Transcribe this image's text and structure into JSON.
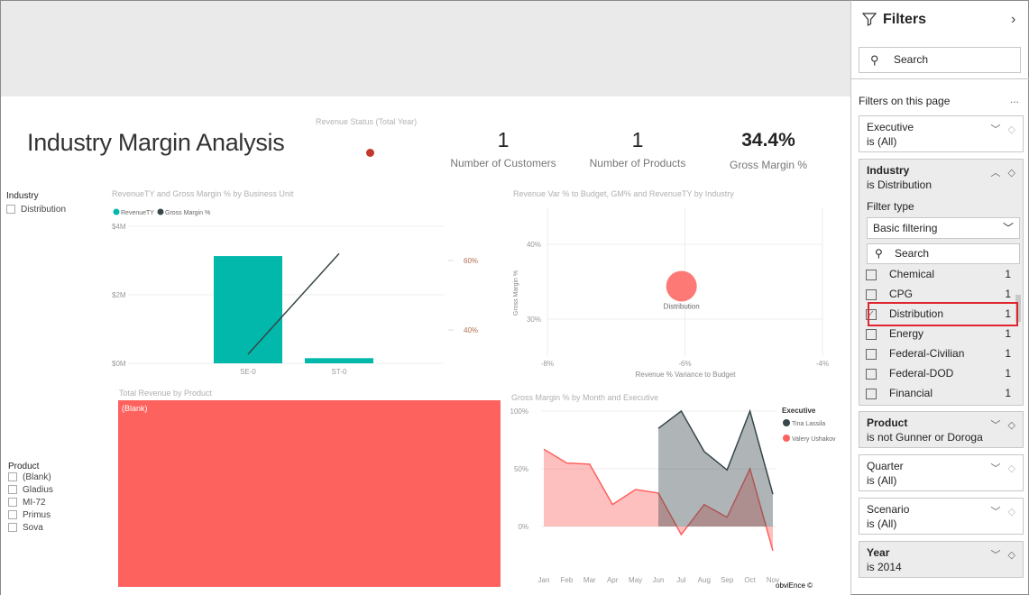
{
  "report": {
    "title": "Industry Margin Analysis",
    "revenue_status_label": "Revenue Status (Total Year)",
    "status_color": "#c0392b",
    "kpis": [
      {
        "value": "1",
        "label": "Number of Customers"
      },
      {
        "value": "1",
        "label": "Number of Products"
      },
      {
        "value": "34.4%",
        "label": "Gross Margin %"
      }
    ],
    "industry_slicer": {
      "title": "Industry",
      "items": [
        "Distribution"
      ]
    },
    "product_slicer": {
      "title": "Product",
      "items": [
        "(Blank)",
        "Gladius",
        "MI-72",
        "Primus",
        "Sova"
      ]
    },
    "treemap": {
      "title": "Total Revenue by Product",
      "label": "(Blank)",
      "color": "#FD625E"
    },
    "watermark": "obviEnce ©"
  },
  "chart_data": [
    {
      "type": "bar",
      "title": "RevenueTY and Gross Margin % by Business Unit",
      "legend": [
        "RevenueTY",
        "Gross Margin %"
      ],
      "colors": [
        "#01B8AA",
        "#374649"
      ],
      "categories": [
        "SE-0",
        "ST-0"
      ],
      "series": [
        {
          "name": "RevenueTY",
          "values": [
            3.13,
            0.15
          ],
          "unit": "$M"
        },
        {
          "name": "Gross Margin %",
          "values": [
            33,
            62
          ],
          "type": "line"
        }
      ],
      "y_ticks": [
        "$0M",
        "$2M",
        "$4M"
      ],
      "y2_ticks": [
        "40%",
        "60%"
      ],
      "ylim": [
        0,
        4
      ]
    },
    {
      "type": "scatter",
      "title": "Revenue Var % to Budget, GM% and RevenueTY by Industry",
      "xlabel": "Revenue % Variance to Budget",
      "ylabel": "Gross Margin %",
      "x_ticks": [
        "-8%",
        "-6%",
        "-4%"
      ],
      "y_ticks": [
        "40%",
        "30%"
      ],
      "xlim": [
        -8,
        -4
      ],
      "points": [
        {
          "label": "Distribution",
          "x": -6.05,
          "y": 34.4,
          "color": "#FD625E"
        }
      ]
    },
    {
      "type": "area",
      "title": "Gross Margin % by Month and Executive",
      "legend_title": "Executive",
      "x": [
        "Jan",
        "Feb",
        "Mar",
        "Apr",
        "May",
        "Jun",
        "Jul",
        "Aug",
        "Sep",
        "Oct",
        "Nov"
      ],
      "y_ticks": [
        "100%",
        "50%",
        "0%"
      ],
      "ylim": [
        -30,
        100
      ],
      "series": [
        {
          "name": "Tina Lassila",
          "color": "#374649",
          "values": [
            null,
            null,
            null,
            null,
            null,
            85,
            100,
            65,
            49,
            100,
            28
          ]
        },
        {
          "name": "Valery Ushakov",
          "color": "#FD625E",
          "values": [
            67,
            55,
            54,
            19,
            32,
            29,
            -7,
            19,
            8,
            50,
            -21
          ]
        }
      ]
    }
  ],
  "filters": {
    "title": "Filters",
    "search_placeholder": "Search",
    "section": "Filters on this page",
    "more": "...",
    "cards": [
      {
        "name": "Executive",
        "value": "is (All)"
      },
      {
        "name": "Industry",
        "value": "is Distribution",
        "filter_type_label": "Filter type",
        "filter_type": "Basic filtering",
        "search": "Search",
        "items": [
          {
            "label": "Chemical",
            "count": "1",
            "checked": false
          },
          {
            "label": "CPG",
            "count": "1",
            "checked": false
          },
          {
            "label": "Distribution",
            "count": "1",
            "checked": true
          },
          {
            "label": "Energy",
            "count": "1",
            "checked": false
          },
          {
            "label": "Federal-Civilian",
            "count": "1",
            "checked": false
          },
          {
            "label": "Federal-DOD",
            "count": "1",
            "checked": false
          },
          {
            "label": "Financial",
            "count": "1",
            "checked": false
          }
        ]
      },
      {
        "name": "Product",
        "value": "is not Gunner or Doroga"
      },
      {
        "name": "Quarter",
        "value": "is (All)"
      },
      {
        "name": "Scenario",
        "value": "is (All)"
      },
      {
        "name": "Year",
        "value": "is 2014"
      }
    ]
  }
}
